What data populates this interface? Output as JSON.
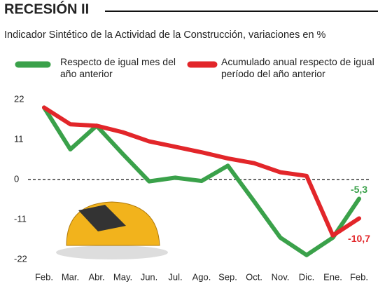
{
  "chart_data": {
    "type": "line",
    "title": "RECESIÓN II",
    "subtitle": "Indicador Sintético de la Actividad de la Construcción, variaciones en %",
    "categories": [
      "Feb.",
      "Mar.",
      "Abr.",
      "May.",
      "Jun.",
      "Jul.",
      "Ago.",
      "Sep.",
      "Oct.",
      "Nov.",
      "Dic.",
      "Ene.",
      "Feb."
    ],
    "series": [
      {
        "name": "Respecto de igual mes del año anterior",
        "color": "#3aa14a",
        "values": [
          19.8,
          8.3,
          14.8,
          7,
          -0.5,
          0.5,
          -0.4,
          3.8,
          -6,
          -16,
          -20.8,
          -16,
          -5.3
        ],
        "value_labels": [
          null,
          null,
          null,
          null,
          null,
          null,
          null,
          null,
          null,
          null,
          null,
          null,
          "-5,3"
        ]
      },
      {
        "name": "Acumulado anual respecto de igual período del año anterior",
        "color": "#e2262a",
        "values": [
          19.8,
          15.2,
          14.8,
          13,
          10.5,
          9,
          7.5,
          5.8,
          4.5,
          2,
          1,
          -15.4,
          -10.7
        ],
        "value_labels": [
          null,
          null,
          null,
          null,
          null,
          null,
          null,
          null,
          null,
          null,
          null,
          null,
          "-10,7"
        ]
      }
    ],
    "ylim": [
      -22,
      22
    ],
    "yticks": [
      22,
      11,
      0,
      -11,
      -22
    ]
  }
}
